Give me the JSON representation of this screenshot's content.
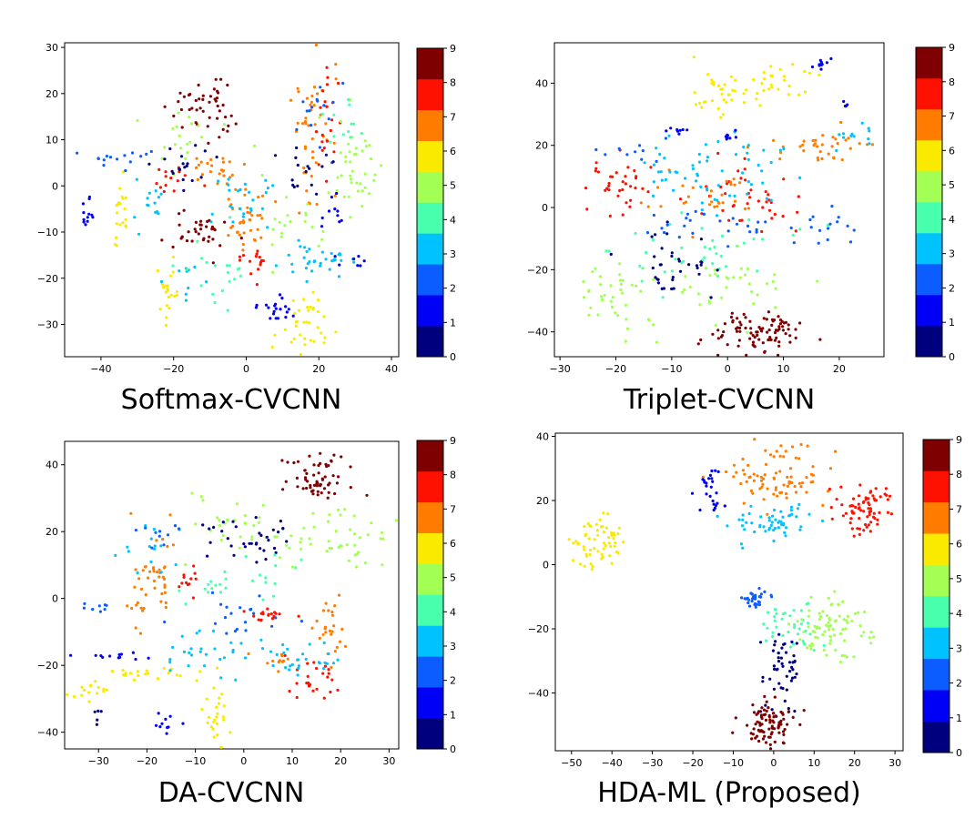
{
  "colors": {
    "jet": [
      "#00007f",
      "#0000f6",
      "#0b5dff",
      "#00c2ff",
      "#48ffae",
      "#a3ff53",
      "#f9ea00",
      "#ff7c00",
      "#fe1100",
      "#7f0000"
    ]
  },
  "colorbar_ticks": [
    "0",
    "1",
    "2",
    "3",
    "4",
    "5",
    "6",
    "7",
    "8",
    "9"
  ],
  "chart_data": [
    {
      "type": "scatter",
      "caption": "Softmax-CVCNN",
      "xlim": [
        -50,
        42
      ],
      "ylim": [
        -37,
        31
      ],
      "xticks": [
        -40,
        -20,
        0,
        20,
        40
      ],
      "xtick_labels": [
        "−40",
        "−20",
        "0",
        "20",
        "40"
      ],
      "yticks": [
        -30,
        -20,
        -10,
        0,
        10,
        20,
        30
      ],
      "ytick_labels": [
        "−30",
        "−20",
        "−10",
        "0",
        "10",
        "20",
        "30"
      ],
      "colorbar": {
        "min": 0,
        "max": 9,
        "ticks": [
          "0",
          "1",
          "2",
          "3",
          "4",
          "5",
          "6",
          "7",
          "8",
          "9"
        ]
      },
      "clusters": [
        {
          "cls": 9,
          "cx": -12,
          "cy": 16,
          "sx": 4,
          "sy": 3,
          "n": 40
        },
        {
          "cls": 9,
          "cx": -13,
          "cy": -10,
          "sx": 4,
          "sy": 2.5,
          "n": 35
        },
        {
          "cls": 9,
          "cx": -7,
          "cy": 22,
          "sx": 2,
          "sy": 1.5,
          "n": 6
        },
        {
          "cls": 7,
          "cx": 18,
          "cy": 12,
          "sx": 3,
          "sy": 7,
          "n": 45
        },
        {
          "cls": 7,
          "cx": -8,
          "cy": 3,
          "sx": 3,
          "sy": 3,
          "n": 25
        },
        {
          "cls": 7,
          "cx": 1,
          "cy": -8,
          "sx": 3,
          "sy": 3,
          "n": 35
        },
        {
          "cls": 6,
          "cx": -35,
          "cy": -7,
          "sx": 1,
          "sy": 4,
          "n": 20
        },
        {
          "cls": 6,
          "cx": -22,
          "cy": -23,
          "sx": 1.5,
          "sy": 2.5,
          "n": 22
        },
        {
          "cls": 6,
          "cx": 16,
          "cy": -30,
          "sx": 4,
          "sy": 3,
          "n": 35
        },
        {
          "cls": 8,
          "cx": 22,
          "cy": 14,
          "sx": 1.5,
          "sy": 6,
          "n": 22
        },
        {
          "cls": 8,
          "cx": -20,
          "cy": 1,
          "sx": 4,
          "sy": 2,
          "n": 14
        },
        {
          "cls": 8,
          "cx": 2,
          "cy": -16,
          "sx": 2,
          "sy": 2,
          "n": 15
        },
        {
          "cls": 3,
          "cx": -27,
          "cy": -4,
          "sx": 2,
          "sy": 3,
          "n": 15
        },
        {
          "cls": 3,
          "cx": 20,
          "cy": -16,
          "sx": 5,
          "sy": 2,
          "n": 35
        },
        {
          "cls": 3,
          "cx": -3,
          "cy": -3,
          "sx": 5,
          "sy": 5,
          "n": 25
        },
        {
          "cls": 3,
          "cx": -16,
          "cy": -21,
          "sx": 4,
          "sy": 2,
          "n": 10
        },
        {
          "cls": 5,
          "cx": 30,
          "cy": 3,
          "sx": 4,
          "sy": 6,
          "n": 40
        },
        {
          "cls": 5,
          "cx": -18,
          "cy": 12,
          "sx": 5,
          "sy": 4,
          "n": 20
        },
        {
          "cls": 5,
          "cx": 12,
          "cy": -8,
          "sx": 5,
          "sy": 4,
          "n": 20
        },
        {
          "cls": 1,
          "cx": -44,
          "cy": -6,
          "sx": 1,
          "sy": 1.5,
          "n": 12
        },
        {
          "cls": 1,
          "cx": 7,
          "cy": -27,
          "sx": 4,
          "sy": 1.5,
          "n": 20
        },
        {
          "cls": 1,
          "cx": 24,
          "cy": -5,
          "sx": 1.5,
          "sy": 6,
          "n": 12
        },
        {
          "cls": 1,
          "cx": 30,
          "cy": -16,
          "sx": 2,
          "sy": 1,
          "n": 6
        },
        {
          "cls": 2,
          "cx": -36,
          "cy": 6,
          "sx": 4,
          "sy": 1,
          "n": 15
        },
        {
          "cls": 2,
          "cx": 20,
          "cy": 15,
          "sx": 4,
          "sy": 5,
          "n": 15
        },
        {
          "cls": 0,
          "cx": -17,
          "cy": 4,
          "sx": 4,
          "sy": 2,
          "n": 20
        },
        {
          "cls": 0,
          "cx": 17,
          "cy": 3,
          "sx": 4,
          "sy": 3,
          "n": 15
        },
        {
          "cls": 4,
          "cx": -7,
          "cy": -18,
          "sx": 5,
          "sy": 4,
          "n": 20
        },
        {
          "cls": 4,
          "cx": 27,
          "cy": 13,
          "sx": 3,
          "sy": 3,
          "n": 12
        }
      ]
    },
    {
      "type": "scatter",
      "caption": "Triplet-CVCNN",
      "xlim": [
        -31,
        28
      ],
      "ylim": [
        -48,
        53
      ],
      "xticks": [
        -30,
        -20,
        -10,
        0,
        10,
        20
      ],
      "xtick_labels": [
        "−30",
        "−20",
        "−10",
        "0",
        "10",
        "20"
      ],
      "yticks": [
        -40,
        -20,
        0,
        20,
        40
      ],
      "ytick_labels": [
        "−40",
        "−20",
        "0",
        "20",
        "40"
      ],
      "colorbar": {
        "min": 0,
        "max": 9,
        "ticks": [
          "0",
          "1",
          "2",
          "3",
          "4",
          "5",
          "6",
          "7",
          "8",
          "9"
        ]
      },
      "clusters": [
        {
          "cls": 6,
          "cx": -1,
          "cy": 37,
          "sx": 3,
          "sy": 4,
          "n": 35
        },
        {
          "cls": 6,
          "cx": 9,
          "cy": 40,
          "sx": 4,
          "sy": 3,
          "n": 25
        },
        {
          "cls": 9,
          "cx": 5,
          "cy": -40,
          "sx": 4,
          "sy": 3,
          "n": 90
        },
        {
          "cls": 8,
          "cx": -20,
          "cy": 7,
          "sx": 3,
          "sy": 5,
          "n": 35
        },
        {
          "cls": 8,
          "cx": 5,
          "cy": 3,
          "sx": 5,
          "sy": 6,
          "n": 40
        },
        {
          "cls": 7,
          "cx": -3,
          "cy": 3,
          "sx": 4,
          "sy": 4,
          "n": 30
        },
        {
          "cls": 7,
          "cx": 16,
          "cy": 20,
          "sx": 4,
          "sy": 3,
          "n": 35
        },
        {
          "cls": 3,
          "cx": -7,
          "cy": 10,
          "sx": 4,
          "sy": 6,
          "n": 35
        },
        {
          "cls": 3,
          "cx": 5,
          "cy": 10,
          "sx": 4,
          "sy": 6,
          "n": 25
        },
        {
          "cls": 3,
          "cx": 23,
          "cy": 22,
          "sx": 2,
          "sy": 2,
          "n": 12
        },
        {
          "cls": 4,
          "cx": -5,
          "cy": -15,
          "sx": 8,
          "sy": 6,
          "n": 40
        },
        {
          "cls": 5,
          "cx": -20,
          "cy": -28,
          "sx": 5,
          "sy": 7,
          "n": 40
        },
        {
          "cls": 5,
          "cx": 0,
          "cy": -25,
          "sx": 6,
          "sy": 5,
          "n": 35
        },
        {
          "cls": 0,
          "cx": -10,
          "cy": -20,
          "sx": 3,
          "sy": 5,
          "n": 35
        },
        {
          "cls": 1,
          "cx": 17,
          "cy": 46,
          "sx": 1,
          "sy": 1,
          "n": 10
        },
        {
          "cls": 1,
          "cx": 21,
          "cy": 33,
          "sx": 0.4,
          "sy": 0.4,
          "n": 4
        },
        {
          "cls": 1,
          "cx": -8,
          "cy": 25,
          "sx": 1.5,
          "sy": 0.4,
          "n": 8
        },
        {
          "cls": 1,
          "cx": 0,
          "cy": 23,
          "sx": 0.7,
          "sy": 0.8,
          "n": 8
        },
        {
          "cls": 2,
          "cx": -17,
          "cy": 18,
          "sx": 3,
          "sy": 2,
          "n": 10
        },
        {
          "cls": 2,
          "cx": -3,
          "cy": -6,
          "sx": 6,
          "sy": 3,
          "n": 25
        },
        {
          "cls": 2,
          "cx": 18,
          "cy": -7,
          "sx": 3,
          "sy": 3,
          "n": 15
        }
      ]
    },
    {
      "type": "scatter",
      "caption": "DA-CVCNN",
      "xlim": [
        -37,
        32
      ],
      "ylim": [
        -45,
        47
      ],
      "xticks": [
        -30,
        -20,
        -10,
        0,
        10,
        20,
        30
      ],
      "xtick_labels": [
        "−30",
        "−20",
        "−10",
        "0",
        "10",
        "20",
        "30"
      ],
      "yticks": [
        -40,
        -20,
        0,
        20,
        40
      ],
      "ytick_labels": [
        "−40",
        "−20",
        "0",
        "20",
        "40"
      ],
      "colorbar": {
        "min": 0,
        "max": 9,
        "ticks": [
          "0",
          "1",
          "2",
          "3",
          "4",
          "5",
          "6",
          "7",
          "8",
          "9"
        ]
      },
      "clusters": [
        {
          "cls": 9,
          "cx": 15,
          "cy": 36,
          "sx": 3,
          "sy": 4,
          "n": 60
        },
        {
          "cls": 6,
          "cx": -31,
          "cy": -27,
          "sx": 2,
          "sy": 2,
          "n": 15
        },
        {
          "cls": 6,
          "cx": -18,
          "cy": -22,
          "sx": 5,
          "sy": 1.2,
          "n": 20
        },
        {
          "cls": 6,
          "cx": -6,
          "cy": -35,
          "sx": 1.5,
          "sy": 5,
          "n": 25
        },
        {
          "cls": 7,
          "cx": -20,
          "cy": 5,
          "sx": 3,
          "sy": 7,
          "n": 45
        },
        {
          "cls": 7,
          "cx": 18,
          "cy": -10,
          "sx": 2,
          "sy": 5,
          "n": 25
        },
        {
          "cls": 7,
          "cx": 7,
          "cy": -18,
          "sx": 2,
          "sy": 1.5,
          "n": 12
        },
        {
          "cls": 8,
          "cx": 5,
          "cy": -5,
          "sx": 3,
          "sy": 1,
          "n": 18
        },
        {
          "cls": 8,
          "cx": 14,
          "cy": -25,
          "sx": 3,
          "sy": 3,
          "n": 25
        },
        {
          "cls": 8,
          "cx": -11,
          "cy": 6,
          "sx": 2,
          "sy": 2,
          "n": 12
        },
        {
          "cls": 5,
          "cx": 20,
          "cy": 17,
          "sx": 6,
          "sy": 5,
          "n": 45
        },
        {
          "cls": 5,
          "cx": -2,
          "cy": 22,
          "sx": 6,
          "sy": 6,
          "n": 30
        },
        {
          "cls": 0,
          "cx": 1,
          "cy": 18,
          "sx": 5,
          "sy": 4,
          "n": 35
        },
        {
          "cls": 0,
          "cx": -30,
          "cy": -36,
          "sx": 0.5,
          "sy": 1.2,
          "n": 5
        },
        {
          "cls": 3,
          "cx": 12,
          "cy": -18,
          "sx": 4,
          "sy": 3,
          "n": 25
        },
        {
          "cls": 3,
          "cx": -6,
          "cy": -16,
          "sx": 5,
          "sy": 4,
          "n": 30
        },
        {
          "cls": 3,
          "cx": -20,
          "cy": 15,
          "sx": 3,
          "sy": 5,
          "n": 15
        },
        {
          "cls": 4,
          "cx": 0,
          "cy": 5,
          "sx": 8,
          "sy": 5,
          "n": 25
        },
        {
          "cls": 1,
          "cx": -25,
          "cy": -18,
          "sx": 4,
          "sy": 1,
          "n": 12
        },
        {
          "cls": 1,
          "cx": -16,
          "cy": -37,
          "sx": 1.5,
          "sy": 1.5,
          "n": 10
        },
        {
          "cls": 2,
          "cx": -30,
          "cy": -2,
          "sx": 2,
          "sy": 1,
          "n": 8
        },
        {
          "cls": 2,
          "cx": 0,
          "cy": -8,
          "sx": 6,
          "sy": 4,
          "n": 20
        },
        {
          "cls": 2,
          "cx": -18,
          "cy": 18,
          "sx": 2,
          "sy": 2,
          "n": 10
        }
      ]
    },
    {
      "type": "scatter",
      "caption": "HDA-ML (Proposed)",
      "xlim": [
        -54,
        32
      ],
      "ylim": [
        -58,
        41
      ],
      "xticks": [
        -50,
        -40,
        -30,
        -20,
        -10,
        0,
        10,
        20,
        30
      ],
      "xtick_labels": [
        "−50",
        "−40",
        "−30",
        "−20",
        "−10",
        "0",
        "10",
        "20",
        "30"
      ],
      "yticks": [
        -40,
        -20,
        0,
        20,
        40
      ],
      "ytick_labels": [
        "−40",
        "−20",
        "0",
        "20",
        "40"
      ],
      "colorbar": {
        "min": 0,
        "max": 9,
        "ticks": [
          "0",
          "1",
          "2",
          "3",
          "4",
          "5",
          "6",
          "7",
          "8",
          "9"
        ]
      },
      "clusters": [
        {
          "cls": 6,
          "cx": -43,
          "cy": 7,
          "sx": 3.5,
          "sy": 3.5,
          "n": 60
        },
        {
          "cls": 7,
          "cx": 2,
          "cy": 28,
          "sx": 6,
          "sy": 5,
          "n": 80
        },
        {
          "cls": 8,
          "cx": 22,
          "cy": 17,
          "sx": 3.5,
          "sy": 4,
          "n": 75
        },
        {
          "cls": 3,
          "cx": 0,
          "cy": 13,
          "sx": 6,
          "sy": 3,
          "n": 55
        },
        {
          "cls": 1,
          "cx": -16,
          "cy": 24,
          "sx": 1.5,
          "sy": 3.5,
          "n": 25
        },
        {
          "cls": 2,
          "cx": -5,
          "cy": -11,
          "sx": 2.2,
          "sy": 2,
          "n": 30
        },
        {
          "cls": 4,
          "cx": 4,
          "cy": -19,
          "sx": 4,
          "sy": 4,
          "n": 40
        },
        {
          "cls": 5,
          "cx": 14,
          "cy": -20,
          "sx": 5,
          "sy": 5,
          "n": 80
        },
        {
          "cls": 0,
          "cx": 2,
          "cy": -34,
          "sx": 2.5,
          "sy": 6,
          "n": 50
        },
        {
          "cls": 9,
          "cx": -1,
          "cy": -49,
          "sx": 3,
          "sy": 3,
          "n": 90
        }
      ]
    }
  ]
}
